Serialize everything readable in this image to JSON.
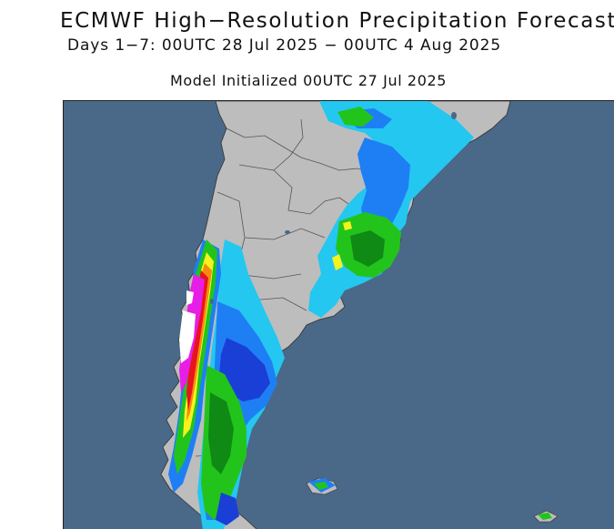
{
  "header": {
    "title": "ECMWF High−Resolution Precipitation Forecast",
    "subtitle": "Days 1−7: 00UTC 28 Jul 2025 − 00UTC 4 Aug 2025",
    "init_line": "Model Initialized 00UTC 27 Jul 2025"
  },
  "map": {
    "region": "southern South America",
    "colors": {
      "ocean": "#4a6887",
      "land": "#bdbdbd",
      "border": "#555555",
      "precip_light_blue": "#24c7f0",
      "precip_blue": "#1e7ff5",
      "precip_dark_blue": "#1a3fd6",
      "precip_green": "#22c41c",
      "precip_dark_green": "#0f8a14",
      "precip_yellow": "#f5f21e",
      "precip_orange": "#f58a12",
      "precip_red": "#e8141e",
      "precip_magenta": "#e61ee6",
      "precip_white": "#ffffff"
    }
  }
}
